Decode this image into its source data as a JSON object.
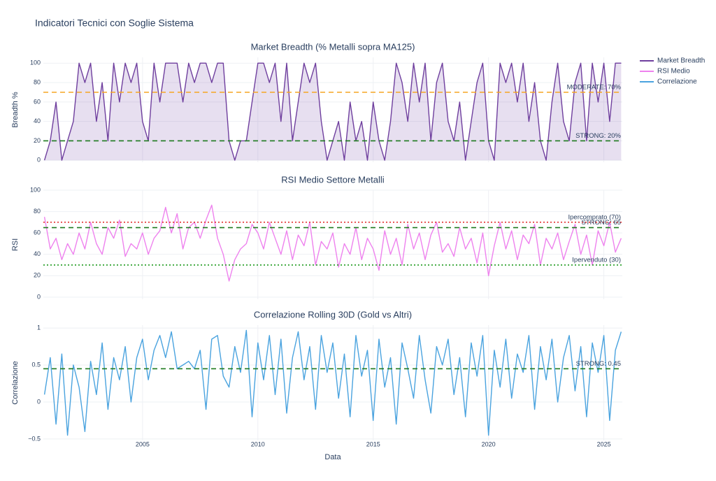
{
  "title": "Indicatori Tecnici con Soglie Sistema",
  "legend": "right",
  "chart_data": [
    {
      "type": "area",
      "title": "Market Breadth (% Metalli sopra MA125)",
      "ylabel": "Breadth %",
      "xlim": [
        2000.7,
        2025.8
      ],
      "xticks": [
        2005,
        2010,
        2015,
        2020,
        2025
      ],
      "ylim": [
        -2,
        106
      ],
      "yticks": [
        0,
        20,
        40,
        60,
        80,
        100
      ],
      "grid": true,
      "x": [
        2000.75,
        2001,
        2001.25,
        2001.5,
        2001.75,
        2002,
        2002.25,
        2002.5,
        2002.75,
        2003,
        2003.25,
        2003.5,
        2003.75,
        2004,
        2004.25,
        2004.5,
        2004.75,
        2005,
        2005.25,
        2005.5,
        2005.75,
        2006,
        2006.25,
        2006.5,
        2006.75,
        2007,
        2007.25,
        2007.5,
        2007.75,
        2008,
        2008.25,
        2008.5,
        2008.75,
        2009,
        2009.25,
        2009.5,
        2009.75,
        2010,
        2010.25,
        2010.5,
        2010.75,
        2011,
        2011.25,
        2011.5,
        2011.75,
        2012,
        2012.25,
        2012.5,
        2012.75,
        2013,
        2013.25,
        2013.5,
        2013.75,
        2014,
        2014.25,
        2014.5,
        2014.75,
        2015,
        2015.25,
        2015.5,
        2015.75,
        2016,
        2016.25,
        2016.5,
        2016.75,
        2017,
        2017.25,
        2017.5,
        2017.75,
        2018,
        2018.25,
        2018.5,
        2018.75,
        2019,
        2019.25,
        2019.5,
        2019.75,
        2020,
        2020.25,
        2020.5,
        2020.75,
        2021,
        2021.25,
        2021.5,
        2021.75,
        2022,
        2022.25,
        2022.5,
        2022.75,
        2023,
        2023.25,
        2023.5,
        2023.75,
        2024,
        2024.25,
        2024.5,
        2024.75,
        2025,
        2025.25,
        2025.5,
        2025.75
      ],
      "series": [
        {
          "name": "Market Breadth",
          "color": "#6f3f9e",
          "fill": "rgba(120,80,170,0.18)",
          "values": [
            0,
            20,
            60,
            0,
            20,
            40,
            100,
            80,
            100,
            40,
            80,
            20,
            100,
            60,
            100,
            80,
            100,
            40,
            20,
            100,
            60,
            100,
            100,
            100,
            60,
            100,
            80,
            100,
            100,
            80,
            100,
            100,
            20,
            0,
            20,
            20,
            60,
            100,
            100,
            80,
            100,
            40,
            100,
            20,
            60,
            100,
            80,
            100,
            40,
            0,
            20,
            40,
            0,
            60,
            20,
            40,
            0,
            60,
            20,
            0,
            40,
            100,
            80,
            40,
            100,
            60,
            100,
            20,
            80,
            100,
            40,
            20,
            60,
            0,
            40,
            80,
            100,
            20,
            0,
            100,
            80,
            100,
            60,
            100,
            40,
            80,
            20,
            0,
            60,
            100,
            40,
            20,
            80,
            100,
            20,
            100,
            60,
            100,
            40,
            100,
            100
          ]
        }
      ],
      "hlines": [
        {
          "value": 70,
          "label": "MODERATE: 70%",
          "color": "#f5a623",
          "dash": "dash"
        },
        {
          "value": 20,
          "label": "STRONG: 20%",
          "color": "#1e7a1e",
          "dash": "dash"
        }
      ]
    },
    {
      "type": "line",
      "title": "RSI Medio Settore Metalli",
      "ylabel": "RSI",
      "xlim": [
        2000.7,
        2025.8
      ],
      "xticks": [
        2005,
        2010,
        2015,
        2020,
        2025
      ],
      "ylim": [
        -2,
        100
      ],
      "yticks": [
        0,
        20,
        40,
        60,
        80,
        100
      ],
      "grid": true,
      "x": [
        2000.75,
        2001,
        2001.25,
        2001.5,
        2001.75,
        2002,
        2002.25,
        2002.5,
        2002.75,
        2003,
        2003.25,
        2003.5,
        2003.75,
        2004,
        2004.25,
        2004.5,
        2004.75,
        2005,
        2005.25,
        2005.5,
        2005.75,
        2006,
        2006.25,
        2006.5,
        2006.75,
        2007,
        2007.25,
        2007.5,
        2007.75,
        2008,
        2008.25,
        2008.5,
        2008.75,
        2009,
        2009.25,
        2009.5,
        2009.75,
        2010,
        2010.25,
        2010.5,
        2010.75,
        2011,
        2011.25,
        2011.5,
        2011.75,
        2012,
        2012.25,
        2012.5,
        2012.75,
        2013,
        2013.25,
        2013.5,
        2013.75,
        2014,
        2014.25,
        2014.5,
        2014.75,
        2015,
        2015.25,
        2015.5,
        2015.75,
        2016,
        2016.25,
        2016.5,
        2016.75,
        2017,
        2017.25,
        2017.5,
        2017.75,
        2018,
        2018.25,
        2018.5,
        2018.75,
        2019,
        2019.25,
        2019.5,
        2019.75,
        2020,
        2020.25,
        2020.5,
        2020.75,
        2021,
        2021.25,
        2021.5,
        2021.75,
        2022,
        2022.25,
        2022.5,
        2022.75,
        2023,
        2023.25,
        2023.5,
        2023.75,
        2024,
        2024.25,
        2024.5,
        2024.75,
        2025,
        2025.25,
        2025.5,
        2025.75
      ],
      "series": [
        {
          "name": "RSI Medio",
          "color": "#ee82ee",
          "values": [
            75,
            45,
            55,
            35,
            50,
            40,
            60,
            45,
            70,
            50,
            40,
            65,
            55,
            72,
            38,
            50,
            45,
            60,
            40,
            55,
            62,
            84,
            60,
            78,
            45,
            65,
            70,
            55,
            72,
            86,
            55,
            40,
            15,
            35,
            45,
            50,
            68,
            60,
            45,
            70,
            55,
            40,
            62,
            35,
            58,
            48,
            70,
            30,
            52,
            45,
            60,
            28,
            50,
            40,
            65,
            35,
            55,
            45,
            25,
            62,
            40,
            55,
            30,
            68,
            45,
            60,
            35,
            58,
            70,
            42,
            50,
            38,
            65,
            45,
            55,
            32,
            60,
            20,
            48,
            70,
            45,
            62,
            35,
            58,
            50,
            68,
            30,
            55,
            45,
            60,
            35,
            52,
            68,
            40,
            58,
            30,
            62,
            48,
            70,
            42,
            55
          ]
        }
      ],
      "hlines": [
        {
          "value": 70,
          "label": "Ipercomprato (70)",
          "color": "#e02020",
          "dash": "dot"
        },
        {
          "value": 65,
          "label": "STRONG: 65",
          "color": "#1e7a1e",
          "dash": "dash"
        },
        {
          "value": 30,
          "label": "Ipervenduto (30)",
          "color": "#1e9a1e",
          "dash": "dot"
        }
      ]
    },
    {
      "type": "line",
      "title": "Correlazione Rolling 30D (Gold vs Altri)",
      "ylabel": "Correlazione",
      "xlabel": "Data",
      "xlim": [
        2000.7,
        2025.8
      ],
      "xticks": [
        2005,
        2010,
        2015,
        2020,
        2025
      ],
      "ylim": [
        -0.52,
        1.04
      ],
      "yticks": [
        {
          "value": -0.5,
          "label": "−0.5"
        },
        0,
        0.5,
        1
      ],
      "grid": true,
      "x": [
        2000.75,
        2001,
        2001.25,
        2001.5,
        2001.75,
        2002,
        2002.25,
        2002.5,
        2002.75,
        2003,
        2003.25,
        2003.5,
        2003.75,
        2004,
        2004.25,
        2004.5,
        2004.75,
        2005,
        2005.25,
        2005.5,
        2005.75,
        2006,
        2006.25,
        2006.5,
        2006.75,
        2007,
        2007.25,
        2007.5,
        2007.75,
        2008,
        2008.25,
        2008.5,
        2008.75,
        2009,
        2009.25,
        2009.5,
        2009.75,
        2010,
        2010.25,
        2010.5,
        2010.75,
        2011,
        2011.25,
        2011.5,
        2011.75,
        2012,
        2012.25,
        2012.5,
        2012.75,
        2013,
        2013.25,
        2013.5,
        2013.75,
        2014,
        2014.25,
        2014.5,
        2014.75,
        2015,
        2015.25,
        2015.5,
        2015.75,
        2016,
        2016.25,
        2016.5,
        2016.75,
        2017,
        2017.25,
        2017.5,
        2017.75,
        2018,
        2018.25,
        2018.5,
        2018.75,
        2019,
        2019.25,
        2019.5,
        2019.75,
        2020,
        2020.25,
        2020.5,
        2020.75,
        2021,
        2021.25,
        2021.5,
        2021.75,
        2022,
        2022.25,
        2022.5,
        2022.75,
        2023,
        2023.25,
        2023.5,
        2023.75,
        2024,
        2024.25,
        2024.5,
        2024.75,
        2025,
        2025.25,
        2025.5,
        2025.75
      ],
      "series": [
        {
          "name": "Correlazione",
          "color": "#4aa3df",
          "values": [
            0.1,
            0.6,
            -0.3,
            0.65,
            -0.45,
            0.5,
            0.2,
            -0.4,
            0.55,
            0.1,
            0.8,
            -0.1,
            0.6,
            0.3,
            0.75,
            0.0,
            0.6,
            0.85,
            0.3,
            0.7,
            0.9,
            0.6,
            0.95,
            0.45,
            0.5,
            0.55,
            0.45,
            0.7,
            -0.1,
            0.85,
            0.9,
            0.35,
            0.2,
            0.75,
            0.4,
            0.97,
            -0.2,
            0.8,
            0.3,
            0.9,
            0.1,
            0.85,
            -0.15,
            0.6,
            0.95,
            0.3,
            0.75,
            -0.1,
            0.9,
            0.4,
            0.8,
            0.05,
            0.65,
            -0.2,
            0.9,
            0.35,
            0.7,
            -0.25,
            0.85,
            0.2,
            0.6,
            -0.3,
            0.8,
            0.45,
            0.05,
            0.9,
            0.3,
            -0.15,
            0.75,
            0.5,
            0.85,
            0.1,
            0.6,
            -0.2,
            0.8,
            0.35,
            0.9,
            -0.45,
            0.7,
            0.2,
            0.85,
            0.05,
            0.65,
            0.4,
            0.9,
            -0.1,
            0.75,
            0.3,
            0.85,
            0.0,
            0.6,
            0.9,
            0.15,
            0.75,
            -0.2,
            0.8,
            0.4,
            0.9,
            -0.25,
            0.7,
            0.95
          ]
        }
      ],
      "hlines": [
        {
          "value": 0.45,
          "label": "STRONG: 0.45",
          "color": "#1e7a1e",
          "dash": "dash"
        }
      ]
    }
  ]
}
